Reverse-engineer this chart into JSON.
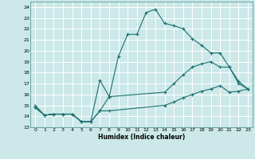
{
  "xlabel": "Humidex (Indice chaleur)",
  "background_color": "#cce8e8",
  "grid_color": "#ffffff",
  "line_color": "#1a7070",
  "xlim": [
    -0.5,
    23.5
  ],
  "ylim": [
    13,
    24.5
  ],
  "xticks": [
    0,
    1,
    2,
    3,
    4,
    5,
    6,
    7,
    8,
    9,
    10,
    11,
    12,
    13,
    14,
    15,
    16,
    17,
    18,
    19,
    20,
    21,
    22,
    23
  ],
  "yticks": [
    13,
    14,
    15,
    16,
    17,
    18,
    19,
    20,
    21,
    22,
    23,
    24
  ],
  "curve1_x": [
    0,
    1,
    2,
    3,
    4,
    5,
    6,
    7,
    8,
    9,
    10,
    11,
    12,
    13,
    14,
    15,
    16,
    17,
    18,
    19,
    20,
    21,
    22,
    23
  ],
  "curve1_y": [
    15.0,
    14.1,
    14.2,
    14.2,
    14.2,
    13.5,
    13.5,
    17.3,
    15.8,
    19.5,
    21.5,
    21.5,
    23.5,
    23.8,
    22.5,
    22.3,
    22.0,
    21.1,
    20.5,
    19.8,
    19.8,
    18.5,
    17.0,
    16.5
  ],
  "curve2_x": [
    0,
    1,
    2,
    3,
    4,
    5,
    6,
    7,
    8,
    14,
    15,
    16,
    17,
    18,
    19,
    20,
    21,
    22,
    23
  ],
  "curve2_y": [
    14.8,
    14.1,
    14.2,
    14.2,
    14.2,
    13.5,
    13.5,
    14.5,
    14.5,
    15.0,
    15.3,
    15.7,
    16.0,
    16.3,
    16.5,
    16.8,
    16.2,
    16.3,
    16.5
  ],
  "curve3_x": [
    0,
    1,
    2,
    3,
    4,
    5,
    6,
    7,
    8,
    14,
    15,
    16,
    17,
    18,
    19,
    20,
    21,
    22,
    23
  ],
  "curve3_y": [
    14.8,
    14.1,
    14.2,
    14.2,
    14.2,
    13.5,
    13.5,
    14.5,
    15.8,
    16.2,
    17.0,
    17.8,
    18.5,
    18.8,
    19.0,
    18.5,
    18.5,
    17.2,
    16.5
  ]
}
